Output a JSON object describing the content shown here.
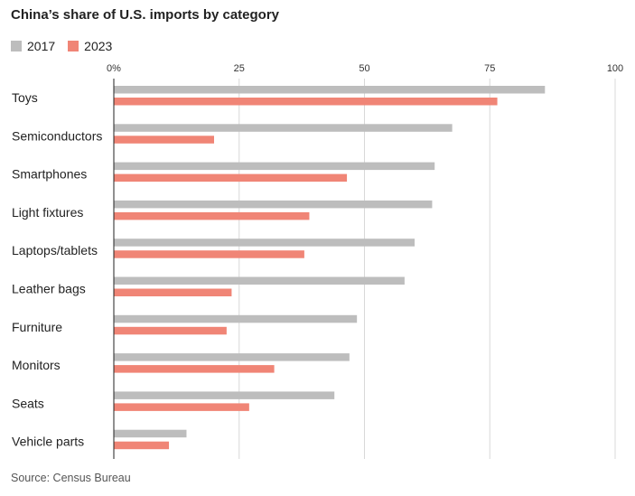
{
  "title": "China’s share of U.S. imports by category",
  "source": "Source: Census Bureau",
  "colors": {
    "s2017": "#bdbdbd",
    "s2023": "#f08576",
    "grid": "#d8d8d8",
    "axis": "#222222"
  },
  "chart_data": {
    "type": "bar",
    "orientation": "horizontal",
    "title": "China’s share of U.S. imports by category",
    "xlabel": "",
    "ylabel": "",
    "xlim": [
      0,
      100
    ],
    "ticks": [
      0,
      25,
      50,
      75,
      100
    ],
    "tick_labels": [
      "0%",
      "25",
      "50",
      "75",
      "100"
    ],
    "legend_position": "top-left",
    "categories": [
      "Toys",
      "Semiconductors",
      "Smartphones",
      "Light fixtures",
      "Laptops/tablets",
      "Leather bags",
      "Furniture",
      "Monitors",
      "Seats",
      "Vehicle parts"
    ],
    "series": [
      {
        "name": "2017",
        "values": [
          86,
          67.5,
          64,
          63.5,
          60,
          58,
          48.5,
          47,
          44,
          14.5
        ]
      },
      {
        "name": "2023",
        "values": [
          76.5,
          20,
          46.5,
          39,
          38,
          23.5,
          22.5,
          32,
          27,
          11
        ]
      }
    ]
  }
}
